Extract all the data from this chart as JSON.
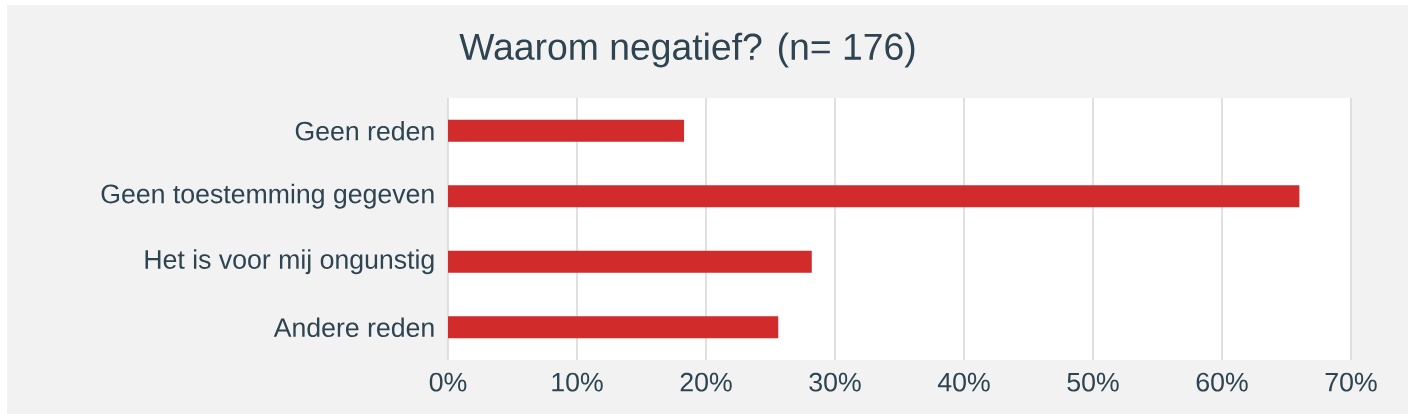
{
  "chart_data": {
    "type": "bar",
    "orientation": "horizontal",
    "title": "Waarom negatief? (n= 176)",
    "categories": [
      "Geen reden",
      "Geen toestemming gegeven",
      "Het is voor mij ongunstig",
      "Andere reden"
    ],
    "values": [
      18.3,
      66.0,
      28.2,
      25.6
    ],
    "color": "#d22b2b",
    "xlim": [
      0,
      70
    ],
    "xticks": [
      {
        "value": 0,
        "label": "0%"
      },
      {
        "value": 10,
        "label": "10%"
      },
      {
        "value": 20,
        "label": "20%"
      },
      {
        "value": 30,
        "label": "30%"
      },
      {
        "value": 40,
        "label": "40%"
      },
      {
        "value": 50,
        "label": "50%"
      },
      {
        "value": 60,
        "label": "60%"
      },
      {
        "value": 70,
        "label": "70%"
      }
    ],
    "grid": "x"
  }
}
